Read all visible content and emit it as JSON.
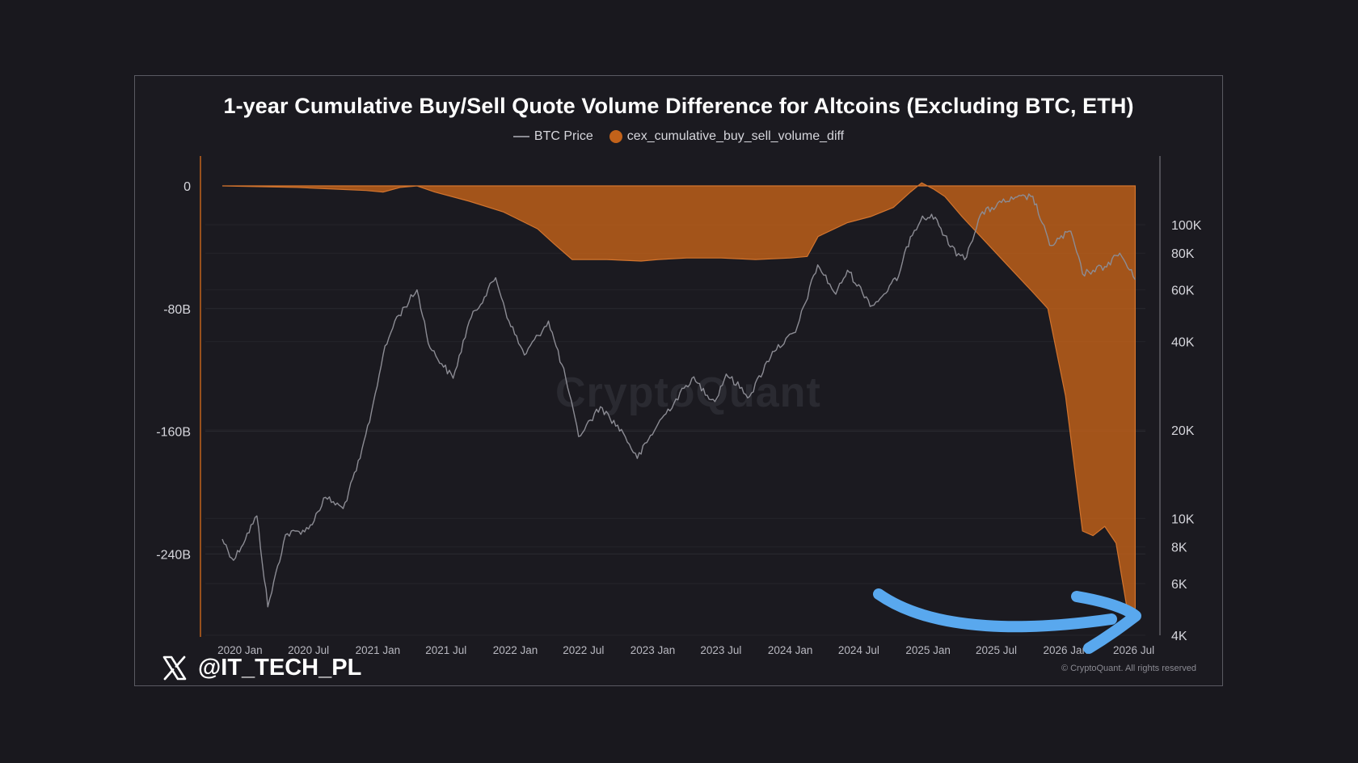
{
  "chart_data": {
    "type": "area",
    "title": "1-year Cumulative Buy/Sell Quote Volume Difference for Altcoins (Excluding BTC, ETH)",
    "legend": {
      "placement": "top-center",
      "items": [
        {
          "label": "BTC Price",
          "marker": "line",
          "color": "#8c8c94"
        },
        {
          "label": "cex_cumulative_buy_sell_volume_diff",
          "marker": "dot",
          "color": "#c2621a"
        }
      ]
    },
    "x_axis": {
      "type": "time",
      "range": [
        "2019-10-01",
        "2026-08-01"
      ],
      "ticks": [
        "2020 Jan",
        "2020 Jul",
        "2021 Jan",
        "2021 Jul",
        "2022 Jan",
        "2022 Jul",
        "2023 Jan",
        "2023 Jul",
        "2024 Jan",
        "2024 Jul",
        "2025 Jan",
        "2025 Jul",
        "2026 Jan",
        "2026 Jul"
      ]
    },
    "left_axis": {
      "label": "",
      "range": [
        -293,
        0
      ],
      "unit": "B",
      "ticks": [
        {
          "value": 0,
          "label": "0"
        },
        {
          "value": -80,
          "label": "-80B"
        },
        {
          "value": -160,
          "label": "-160B"
        },
        {
          "value": -240,
          "label": "-240B"
        }
      ]
    },
    "right_axis": {
      "label": "",
      "scale": "log",
      "range": [
        4000,
        150000
      ],
      "ticks": [
        {
          "value": 100000,
          "label": "100K"
        },
        {
          "value": 80000,
          "label": "80K"
        },
        {
          "value": 60000,
          "label": "60K"
        },
        {
          "value": 40000,
          "label": "40K"
        },
        {
          "value": 20000,
          "label": "20K"
        },
        {
          "value": 10000,
          "label": "10K"
        },
        {
          "value": 8000,
          "label": "8K"
        },
        {
          "value": 6000,
          "label": "6K"
        },
        {
          "value": 4000,
          "label": "4K"
        }
      ]
    },
    "grid": true,
    "series": [
      {
        "name": "cex_cumulative_buy_sell_volume_diff",
        "axis": "left",
        "color": "#c2621a",
        "points": [
          [
            "2019-11-15",
            0
          ],
          [
            "2020-06-01",
            -1
          ],
          [
            "2020-12-01",
            -3
          ],
          [
            "2021-01-15",
            -4
          ],
          [
            "2021-03-01",
            -1
          ],
          [
            "2021-04-15",
            0
          ],
          [
            "2021-06-01",
            -4
          ],
          [
            "2021-09-01",
            -10
          ],
          [
            "2021-12-01",
            -17
          ],
          [
            "2022-03-01",
            -28
          ],
          [
            "2022-04-15",
            -38
          ],
          [
            "2022-06-01",
            -48
          ],
          [
            "2022-09-01",
            -48
          ],
          [
            "2022-12-01",
            -49
          ],
          [
            "2023-01-15",
            -48
          ],
          [
            "2023-04-01",
            -47
          ],
          [
            "2023-07-01",
            -47
          ],
          [
            "2023-10-01",
            -48
          ],
          [
            "2024-01-01",
            -47
          ],
          [
            "2024-02-15",
            -46
          ],
          [
            "2024-03-15",
            -33
          ],
          [
            "2024-06-01",
            -24
          ],
          [
            "2024-08-01",
            -20
          ],
          [
            "2024-10-01",
            -14
          ],
          [
            "2024-11-15",
            -4
          ],
          [
            "2024-12-15",
            2
          ],
          [
            "2025-01-15",
            -2
          ],
          [
            "2025-02-15",
            -7
          ],
          [
            "2025-04-01",
            -20
          ],
          [
            "2025-06-01",
            -36
          ],
          [
            "2025-08-01",
            -52
          ],
          [
            "2025-10-01",
            -68
          ],
          [
            "2025-11-15",
            -80
          ],
          [
            "2026-01-01",
            -137
          ],
          [
            "2026-02-15",
            -225
          ],
          [
            "2026-03-15",
            -228
          ],
          [
            "2026-04-15",
            -222
          ],
          [
            "2026-05-15",
            -233
          ],
          [
            "2026-06-15",
            -278
          ],
          [
            "2026-07-05",
            -278
          ]
        ]
      },
      {
        "name": "BTC Price",
        "axis": "right",
        "color": "#8c8c94",
        "points": [
          [
            "2019-11-15",
            8500
          ],
          [
            "2019-12-15",
            7200
          ],
          [
            "2020-02-15",
            10200
          ],
          [
            "2020-03-15",
            5000
          ],
          [
            "2020-05-01",
            8800
          ],
          [
            "2020-07-01",
            9200
          ],
          [
            "2020-08-15",
            11800
          ],
          [
            "2020-10-01",
            10800
          ],
          [
            "2020-11-15",
            16000
          ],
          [
            "2020-12-15",
            23000
          ],
          [
            "2021-01-15",
            36000
          ],
          [
            "2021-02-15",
            47000
          ],
          [
            "2021-04-15",
            60000
          ],
          [
            "2021-05-20",
            38000
          ],
          [
            "2021-07-20",
            30000
          ],
          [
            "2021-09-01",
            47000
          ],
          [
            "2021-11-10",
            66000
          ],
          [
            "2021-12-15",
            47000
          ],
          [
            "2022-01-25",
            36000
          ],
          [
            "2022-03-30",
            47000
          ],
          [
            "2022-05-15",
            30000
          ],
          [
            "2022-06-18",
            19000
          ],
          [
            "2022-08-15",
            24000
          ],
          [
            "2022-10-15",
            19500
          ],
          [
            "2022-11-21",
            16000
          ],
          [
            "2023-01-15",
            21000
          ],
          [
            "2023-04-15",
            30000
          ],
          [
            "2023-06-15",
            25000
          ],
          [
            "2023-07-15",
            31000
          ],
          [
            "2023-09-15",
            26000
          ],
          [
            "2023-11-15",
            37000
          ],
          [
            "2024-01-15",
            43000
          ],
          [
            "2024-03-14",
            73000
          ],
          [
            "2024-05-01",
            58000
          ],
          [
            "2024-06-01",
            70000
          ],
          [
            "2024-08-05",
            53000
          ],
          [
            "2024-09-01",
            57000
          ],
          [
            "2024-10-15",
            67000
          ],
          [
            "2024-11-15",
            91000
          ],
          [
            "2024-12-17",
            107000
          ],
          [
            "2025-01-20",
            106000
          ],
          [
            "2025-03-01",
            84000
          ],
          [
            "2025-04-08",
            76000
          ],
          [
            "2025-05-20",
            108000
          ],
          [
            "2025-07-15",
            119000
          ],
          [
            "2025-08-15",
            122000
          ],
          [
            "2025-10-06",
            125000
          ],
          [
            "2025-11-20",
            85000
          ],
          [
            "2026-01-15",
            95000
          ],
          [
            "2026-02-15",
            68000
          ],
          [
            "2026-03-15",
            70000
          ],
          [
            "2026-04-15",
            72000
          ],
          [
            "2026-05-25",
            80000
          ],
          [
            "2026-07-05",
            65000
          ]
        ]
      }
    ],
    "annotations": [
      {
        "type": "arrow",
        "color": "#59a8ee",
        "points_to": "2026-07-01",
        "meaning": "points to the latest low of the cumulative difference"
      }
    ],
    "watermark": "CryptoQuant"
  },
  "footer": {
    "copyright": "© CryptoQuant. All rights reserved",
    "handle": "@IT_TECH_PL",
    "handle_icon": "x-logo-icon"
  }
}
